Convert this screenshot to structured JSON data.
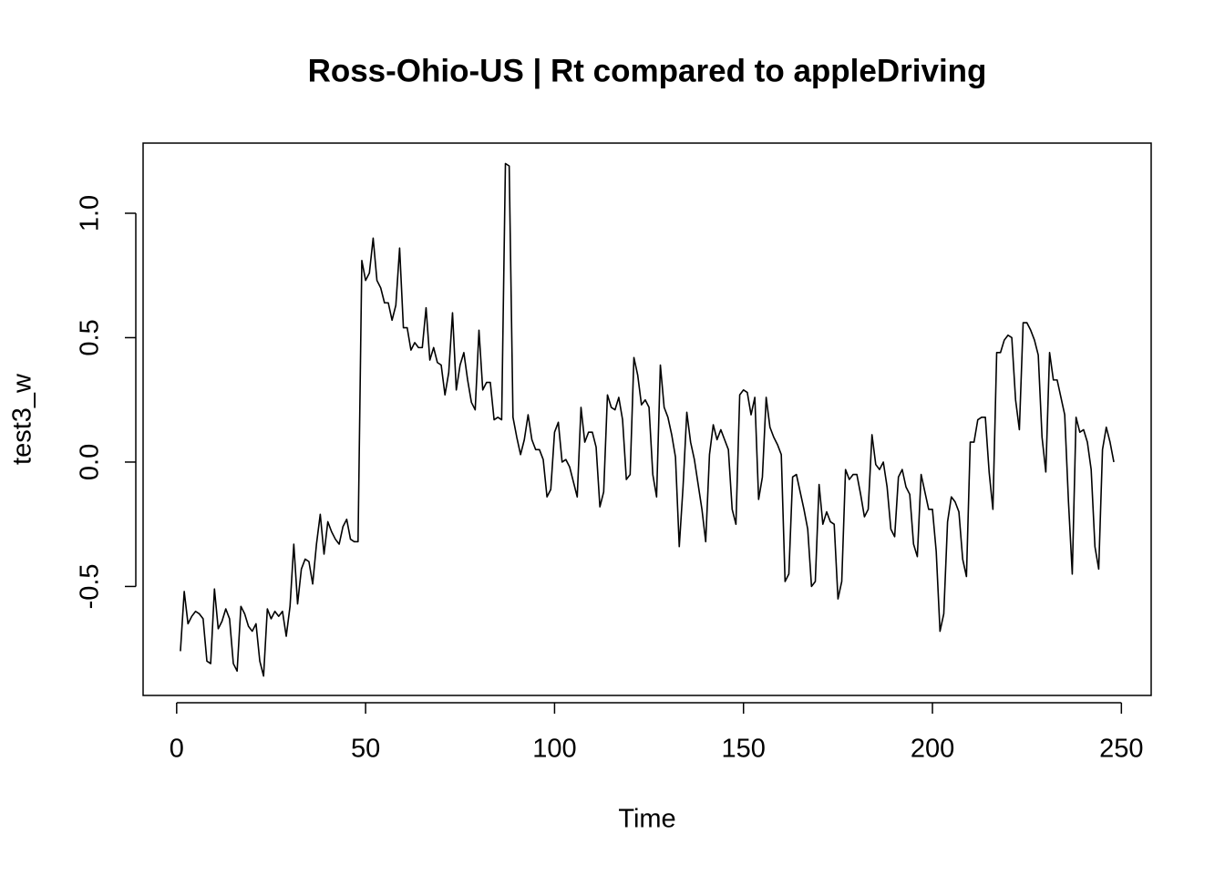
{
  "chart_data": {
    "type": "line",
    "title": "Ross-Ohio-US | Rt compared to appleDriving",
    "x_label": "Time",
    "y_label": "test3_w",
    "color": "#000000",
    "grid": false,
    "xlim": [
      -8.88,
      257.88
    ],
    "ylim": [
      -0.938,
      1.282
    ],
    "xticks": [
      0,
      50,
      100,
      150,
      200,
      250
    ],
    "yticks": [
      -0.5,
      {
        "value": 0,
        "label": "0.0"
      },
      0.5,
      {
        "value": 1,
        "label": "1.0"
      }
    ],
    "x": [
      1,
      2,
      3,
      4,
      5,
      6,
      7,
      8,
      9,
      10,
      11,
      12,
      13,
      14,
      15,
      16,
      17,
      18,
      19,
      20,
      21,
      22,
      23,
      24,
      25,
      26,
      27,
      28,
      29,
      30,
      31,
      32,
      33,
      34,
      35,
      36,
      37,
      38,
      39,
      40,
      41,
      42,
      43,
      44,
      45,
      46,
      47,
      48,
      49,
      50,
      51,
      52,
      53,
      54,
      55,
      56,
      57,
      58,
      59,
      60,
      61,
      62,
      63,
      64,
      65,
      66,
      67,
      68,
      69,
      70,
      71,
      72,
      73,
      74,
      75,
      76,
      77,
      78,
      79,
      80,
      81,
      82,
      83,
      84,
      85,
      86,
      87,
      88,
      89,
      90,
      91,
      92,
      93,
      94,
      95,
      96,
      97,
      98,
      99,
      100,
      101,
      102,
      103,
      104,
      105,
      106,
      107,
      108,
      109,
      110,
      111,
      112,
      113,
      114,
      115,
      116,
      117,
      118,
      119,
      120,
      121,
      122,
      123,
      124,
      125,
      126,
      127,
      128,
      129,
      130,
      131,
      132,
      133,
      134,
      135,
      136,
      137,
      138,
      139,
      140,
      141,
      142,
      143,
      144,
      145,
      146,
      147,
      148,
      149,
      150,
      151,
      152,
      153,
      154,
      155,
      156,
      157,
      158,
      159,
      160,
      161,
      162,
      163,
      164,
      165,
      166,
      167,
      168,
      169,
      170,
      171,
      172,
      173,
      174,
      175,
      176,
      177,
      178,
      179,
      180,
      181,
      182,
      183,
      184,
      185,
      186,
      187,
      188,
      189,
      190,
      191,
      192,
      193,
      194,
      195,
      196,
      197,
      198,
      199,
      200,
      201,
      202,
      203,
      204,
      205,
      206,
      207,
      208,
      209,
      210,
      211,
      212,
      213,
      214,
      215,
      216,
      217,
      218,
      219,
      220,
      221,
      222,
      223,
      224,
      225,
      226,
      227,
      228,
      229,
      230,
      231,
      232,
      233,
      234,
      235,
      236,
      237,
      238,
      239,
      240,
      241,
      242,
      243,
      244,
      245,
      246,
      247,
      248
    ],
    "values": [
      -0.76,
      -0.52,
      -0.65,
      -0.62,
      -0.6,
      -0.61,
      -0.63,
      -0.8,
      -0.81,
      -0.51,
      -0.67,
      -0.64,
      -0.59,
      -0.63,
      -0.81,
      -0.84,
      -0.58,
      -0.61,
      -0.66,
      -0.68,
      -0.65,
      -0.8,
      -0.86,
      -0.59,
      -0.63,
      -0.6,
      -0.62,
      -0.6,
      -0.7,
      -0.58,
      -0.33,
      -0.57,
      -0.43,
      -0.39,
      -0.4,
      -0.49,
      -0.33,
      -0.21,
      -0.37,
      -0.24,
      -0.28,
      -0.31,
      -0.33,
      -0.26,
      -0.23,
      -0.31,
      -0.32,
      -0.32,
      0.81,
      0.73,
      0.76,
      0.9,
      0.73,
      0.7,
      0.64,
      0.64,
      0.57,
      0.63,
      0.86,
      0.54,
      0.54,
      0.45,
      0.48,
      0.46,
      0.46,
      0.62,
      0.41,
      0.46,
      0.4,
      0.39,
      0.27,
      0.36,
      0.6,
      0.29,
      0.39,
      0.44,
      0.33,
      0.24,
      0.21,
      0.53,
      0.29,
      0.32,
      0.32,
      0.17,
      0.18,
      0.17,
      1.2,
      1.19,
      0.18,
      0.1,
      0.03,
      0.09,
      0.19,
      0.09,
      0.05,
      0.05,
      0.01,
      -0.14,
      -0.11,
      0.12,
      0.16,
      0.0,
      0.01,
      -0.02,
      -0.08,
      -0.14,
      0.22,
      0.08,
      0.12,
      0.12,
      0.06,
      -0.18,
      -0.12,
      0.27,
      0.22,
      0.21,
      0.26,
      0.17,
      -0.07,
      -0.05,
      0.42,
      0.35,
      0.23,
      0.25,
      0.22,
      -0.05,
      -0.14,
      0.39,
      0.22,
      0.18,
      0.11,
      0.02,
      -0.34,
      -0.1,
      0.2,
      0.08,
      0.01,
      -0.09,
      -0.19,
      -0.32,
      0.03,
      0.15,
      0.09,
      0.13,
      0.09,
      0.05,
      -0.19,
      -0.25,
      0.27,
      0.29,
      0.28,
      0.19,
      0.26,
      -0.15,
      -0.06,
      0.26,
      0.14,
      0.1,
      0.07,
      0.03,
      -0.48,
      -0.45,
      -0.06,
      -0.05,
      -0.12,
      -0.19,
      -0.27,
      -0.5,
      -0.48,
      -0.09,
      -0.25,
      -0.2,
      -0.24,
      -0.25,
      -0.55,
      -0.48,
      -0.03,
      -0.07,
      -0.05,
      -0.05,
      -0.13,
      -0.22,
      -0.19,
      0.11,
      -0.01,
      -0.03,
      0.0,
      -0.1,
      -0.27,
      -0.3,
      -0.06,
      -0.03,
      -0.1,
      -0.13,
      -0.33,
      -0.38,
      -0.05,
      -0.12,
      -0.19,
      -0.19,
      -0.36,
      -0.68,
      -0.61,
      -0.24,
      -0.14,
      -0.16,
      -0.2,
      -0.39,
      -0.46,
      0.08,
      0.08,
      0.17,
      0.18,
      0.18,
      -0.04,
      -0.19,
      0.44,
      0.44,
      0.49,
      0.51,
      0.5,
      0.25,
      0.13,
      0.56,
      0.56,
      0.53,
      0.49,
      0.43,
      0.1,
      -0.04,
      0.44,
      0.33,
      0.33,
      0.26,
      0.19,
      -0.16,
      -0.45,
      0.18,
      0.12,
      0.13,
      0.08,
      -0.03,
      -0.34,
      -0.43,
      0.05,
      0.14,
      0.08,
      0.0
    ]
  }
}
